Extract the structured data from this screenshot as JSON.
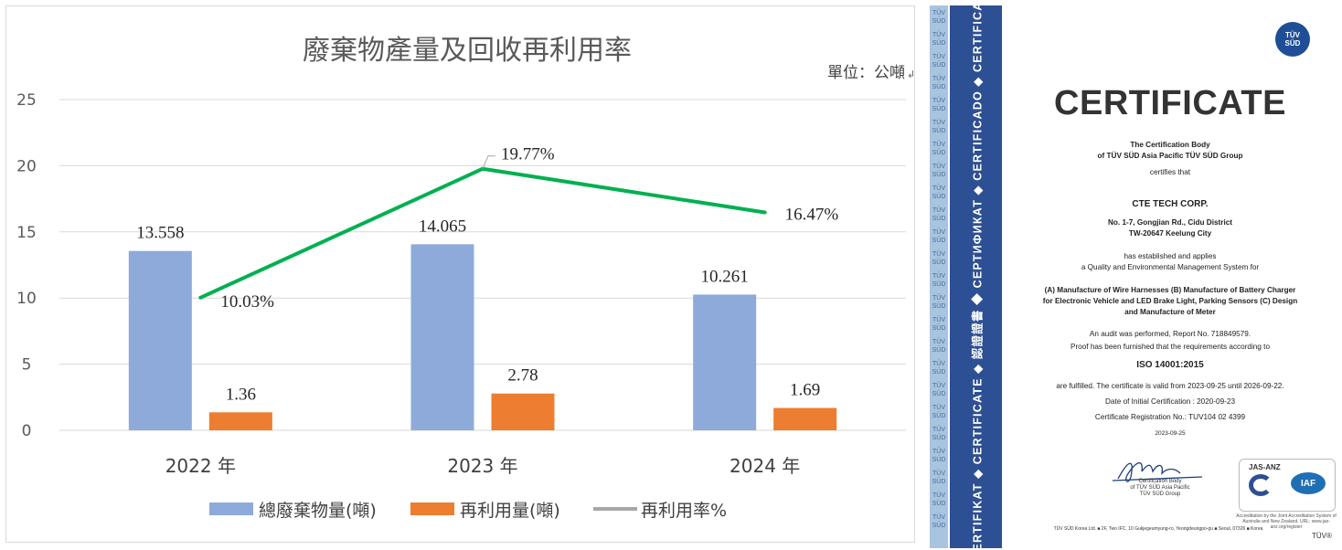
{
  "chart_data": {
    "type": "bar",
    "title": "廢棄物產量及回收再利用率",
    "unit_note": "單位：公噸",
    "categories": [
      "2022 年",
      "2023 年",
      "2024 年"
    ],
    "ylim": [
      0,
      25
    ],
    "yticks": [
      "0",
      "5",
      "10",
      "15",
      "20",
      "25"
    ],
    "grid": true,
    "legend_position": "bottom",
    "series": [
      {
        "name": "總廢棄物量(噸)",
        "type": "bar",
        "color": "#8eaadb",
        "values": [
          13.558,
          14.065,
          10.261
        ],
        "labels": [
          "13.558",
          "14.065",
          "10.261"
        ]
      },
      {
        "name": "再利用量(噸)",
        "type": "bar",
        "color": "#ed7d31",
        "values": [
          1.36,
          2.78,
          1.69
        ],
        "labels": [
          "1.36",
          "2.78",
          "1.69"
        ]
      },
      {
        "name": "再利用率%",
        "type": "line",
        "color": "#00b050",
        "legend_color": "#a6a6a6",
        "values": [
          10.03,
          19.77,
          16.47
        ],
        "labels": [
          "10.03%",
          "19.77%",
          "16.47%"
        ]
      }
    ]
  },
  "certificate": {
    "side_band": "ZERTIFIKAT ◆ CERTIFICATE ◆ 認證證書 ◆ СЕРТИФИКАТ ◆ CERTIFICADO ◆ CERTIFICAT",
    "tile_text": "TÜV SÜD",
    "logo_line1": "TÜV",
    "logo_line2": "SÜD",
    "heading": "CERTIFICATE",
    "body_line1": "The Certification Body",
    "body_line2": "of TÜV SÜD Asia Pacific TÜV SÜD Group",
    "certifies": "certifies that",
    "company": "CTE TECH CORP.",
    "address1": "No. 1-7, Gongjian Rd., Cidu District",
    "address2": "TW-20647 Keelung City",
    "established1": "has established and applies",
    "established2": "a Quality and Environmental Management System for",
    "scope1": "(A) Manufacture of Wire Harnesses (B) Manufacture of Battery Charger",
    "scope2": "for Electronic Vehicle and LED Brake Light, Parking Sensors (C) Design",
    "scope3": "and Manufacture of Meter",
    "audit": "An audit was performed, Report No. 718849579.",
    "proof": "Proof has been furnished that the requirements according to",
    "standard": "ISO 14001:2015",
    "validity": "are fulfilled. The certificate is valid from 2023-09-25 until 2026-09-22.",
    "initial": "Date of Initial Certification : 2020-09-23",
    "registration": "Certificate Registration No.: TUV104 02 4399",
    "date": "2023-09-25",
    "sig_caption1": "Certification Body",
    "sig_caption2": "of TÜV SÜD Asia Pacific",
    "sig_caption3": "TÜV SÜD Group",
    "acc_jas": "JAS-ANZ",
    "acc_iaf": "IAF",
    "acc_caption": "Accreditation by the Joint Accreditation System of Australia and New Zealand. URL: www.jas-anz.org/register",
    "footer": "TÜV SÜD Korea Ltd. ■ 2F, Two IFC, 10 Gukjegeumyung-ro, Yeongdeungpo-gu ■ Seoul, 07326 ■ Korea",
    "footer_brand": "TÜV®"
  }
}
